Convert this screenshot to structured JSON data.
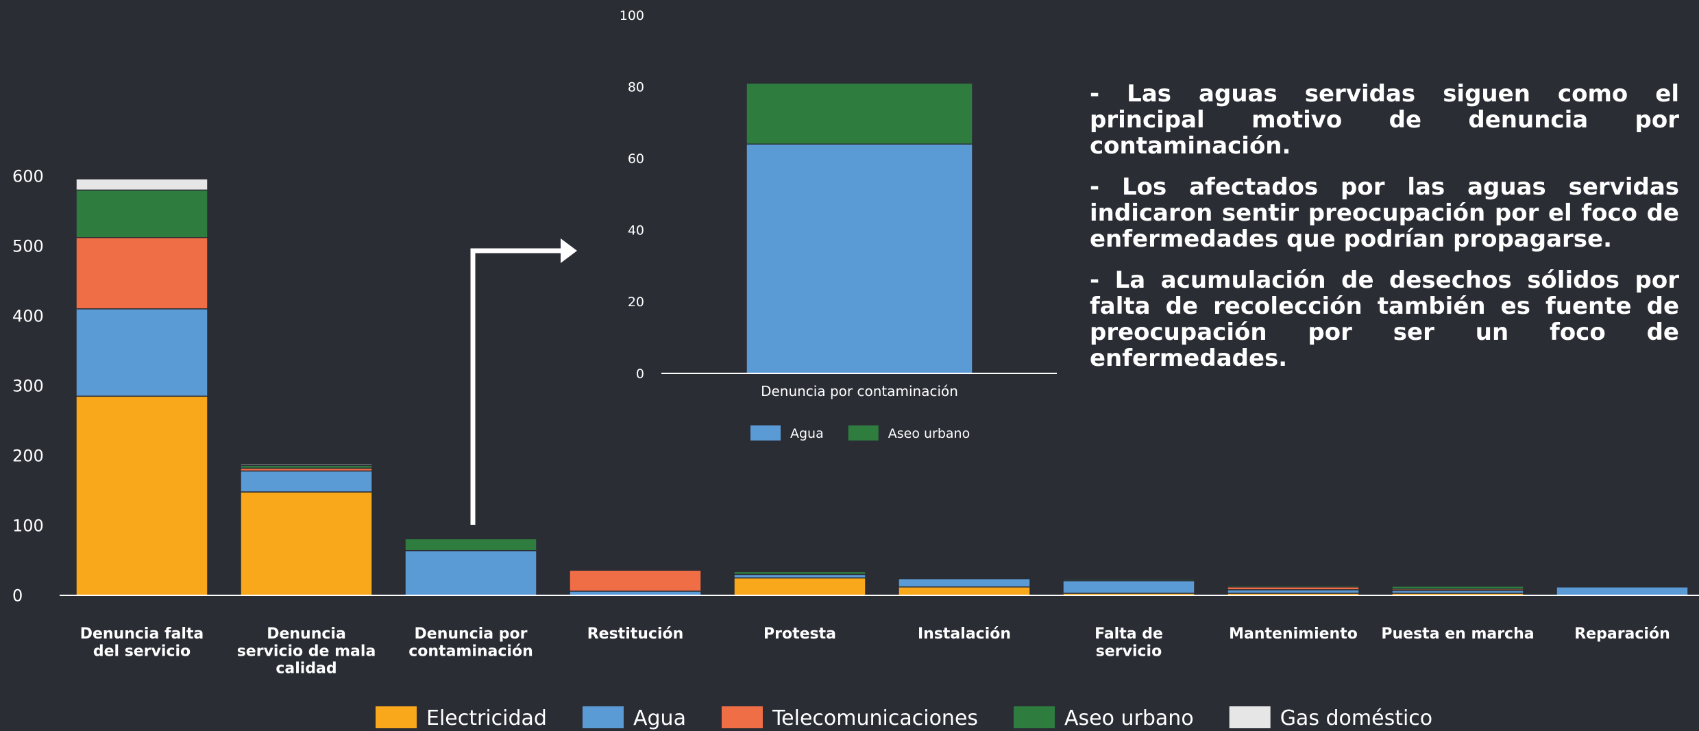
{
  "colors": {
    "background": "#2b2d35",
    "Electricidad": "#f9a81c",
    "Agua": "#5b9bd5",
    "Telecomunicaciones": "#f06e45",
    "Aseo urbano": "#2e7d3f",
    "Gas doméstico": "#e6e6e6"
  },
  "notes": [
    "- Las aguas servidas siguen como el principal motivo de denuncia por contaminación.",
    "- Los afectados por las aguas servidas indicaron sentir preocupación por el foco de enfermedades que podrían propagarse.",
    "- La acumulación de desechos sólidos por falta de recolección también es fuente de preocupación por ser un foco de enfermedades."
  ],
  "chart_data": [
    {
      "type": "bar",
      "stacked": true,
      "categories": [
        "Denuncia falta del servicio",
        "Denuncia servicio de mala calidad",
        "Denuncia por contaminación",
        "Restitución",
        "Protesta",
        "Instalación",
        "Falta de servicio",
        "Mantenimiento",
        "Puesta en marcha",
        "Reparación"
      ],
      "series": [
        {
          "name": "Electricidad",
          "values": [
            285,
            148,
            0,
            0,
            25,
            12,
            3,
            3,
            3,
            0
          ]
        },
        {
          "name": "Agua",
          "values": [
            125,
            30,
            64,
            6,
            5,
            12,
            18,
            5,
            4,
            12
          ]
        },
        {
          "name": "Telecomunicaciones",
          "values": [
            102,
            4,
            0,
            30,
            0,
            0,
            0,
            4,
            2,
            0
          ]
        },
        {
          "name": "Aseo urbano",
          "values": [
            68,
            4,
            17,
            1,
            4,
            1,
            2,
            2,
            4,
            0
          ]
        },
        {
          "name": "Gas doméstico",
          "values": [
            16,
            2,
            0,
            1,
            1,
            1,
            1,
            0,
            0,
            0
          ]
        }
      ],
      "yticks": [
        0,
        100,
        200,
        300,
        400,
        500,
        600
      ],
      "ylim": [
        0,
        600
      ],
      "grid": false,
      "legend": "bottom"
    },
    {
      "type": "bar",
      "stacked": true,
      "categories": [
        "Denuncia por contaminación"
      ],
      "series": [
        {
          "name": "Agua",
          "values": [
            64
          ]
        },
        {
          "name": "Aseo urbano",
          "values": [
            17
          ]
        }
      ],
      "yticks": [
        0,
        20,
        40,
        60,
        80,
        100
      ],
      "ylim": [
        0,
        100
      ],
      "grid": false,
      "legend": "bottom"
    }
  ]
}
